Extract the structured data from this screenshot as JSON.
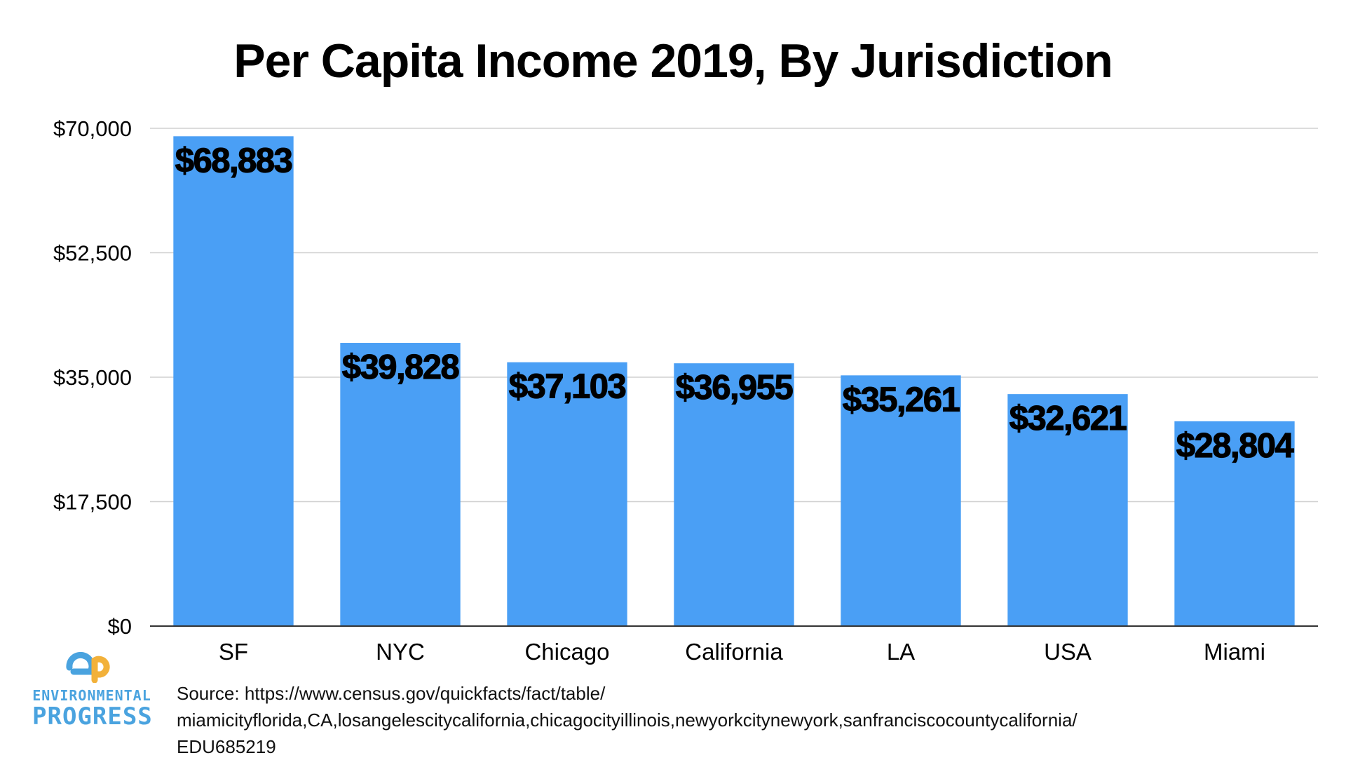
{
  "chart_data": {
    "type": "bar",
    "title": "Per Capita Income 2019, By Jurisdiction",
    "categories": [
      "SF",
      "NYC",
      "Chicago",
      "California",
      "LA",
      "USA",
      "Miami"
    ],
    "values": [
      68883,
      39828,
      37103,
      36955,
      35261,
      32621,
      28804
    ],
    "data_labels": [
      "$68,883",
      "$39,828",
      "$37,103",
      "$36,955",
      "$35,261",
      "$32,621",
      "$28,804"
    ],
    "yticks": [
      0,
      17500,
      35000,
      52500,
      70000
    ],
    "ytick_labels": [
      "$0",
      "$17,500",
      "$35,000",
      "$52,500",
      "$70,000"
    ],
    "ylim": [
      0,
      70000
    ],
    "xlabel": "",
    "ylabel": "",
    "grid": true,
    "bar_color": "#4a9ff5",
    "grid_color": "#d0d0d0",
    "axis_color": "#333333"
  },
  "source": {
    "line1": "Source: https://www.census.gov/quickfacts/fact/table/",
    "line2": "miamicityflorida,CA,losangelescitycalifornia,chicagocityillinois,newyorkcitynewyork,sanfranciscocountycalifornia/",
    "line3": "EDU685219"
  },
  "logo": {
    "line1": "ENVIRONMENTAL",
    "line2": "PROGRESS",
    "colors": {
      "blue": "#4aa3df",
      "orange": "#f2b13a"
    }
  }
}
